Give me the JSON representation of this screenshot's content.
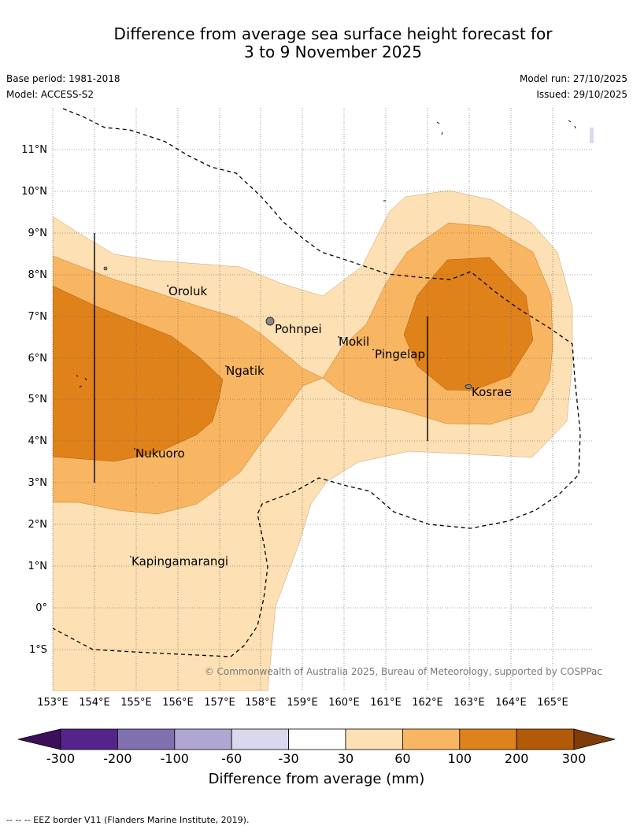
{
  "header": {
    "title_line1": "Difference from average sea surface height forecast for",
    "title_line2": "3 to 9 November 2025",
    "base_period": "Base period: 1981-2018",
    "model": "Model: ACCESS-S2",
    "model_run": "Model run: 27/10/2025",
    "issued": "Issued: 29/10/2025"
  },
  "map": {
    "lat_labels": [
      "11°N",
      "10°N",
      "9°N",
      "8°N",
      "7°N",
      "6°N",
      "5°N",
      "4°N",
      "3°N",
      "2°N",
      "1°N",
      "0°",
      "1°S"
    ],
    "lon_labels": [
      "153°E",
      "154°E",
      "155°E",
      "156°E",
      "157°E",
      "158°E",
      "159°E",
      "160°E",
      "161°E",
      "162°E",
      "163°E",
      "164°E",
      "165°E"
    ],
    "places": [
      "Oroluk",
      "Pohnpei",
      "Mokil",
      "Pingelap",
      "Ngatik",
      "Kosrae",
      "Nukuoro",
      "Kapingamarangi"
    ],
    "copyright": "© Commonwealth of Australia 2025, Bureau of Meteorology, supported by COSPPac",
    "fill_colors": {
      "band_30_60": "#fde0b3",
      "band_60_100": "#f9b662",
      "band_100_200": "#e0821a"
    }
  },
  "colorbar": {
    "ticks": [
      "-300",
      "-200",
      "-100",
      "-60",
      "-30",
      "30",
      "60",
      "100",
      "200",
      "300"
    ],
    "label": "Difference from average (mm)",
    "colors": [
      "#3b0f5a",
      "#55248a",
      "#8070b0",
      "#b0a6d2",
      "#d9d8ec",
      "#ffffff",
      "#fde0b3",
      "#f9b662",
      "#e0821a",
      "#b35a08",
      "#7f3b08"
    ]
  },
  "footnote": "--  --  -- EEZ border V11 (Flanders Marine Institute, 2019)."
}
